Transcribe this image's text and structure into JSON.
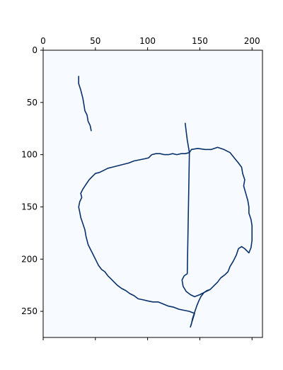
{
  "chart_data": {
    "type": "heatmap",
    "title": "",
    "xlabel": "",
    "ylabel": "",
    "xlim": [
      0,
      210
    ],
    "ylim": [
      275,
      0
    ],
    "x_axis_position": "top",
    "x_ticks": [
      0,
      50,
      100,
      150,
      200
    ],
    "y_ticks": [
      0,
      50,
      100,
      150,
      200,
      250
    ],
    "grid": false,
    "colormap": "Blues",
    "colors": {
      "background": "#f7fbff",
      "foreground": "#08306b",
      "frame": "#000000"
    },
    "series": [
      {
        "values_description": "edge pixels (value 1), stroke A",
        "points": [
          [
            34,
            25
          ],
          [
            34,
            32
          ],
          [
            36,
            38
          ],
          [
            38,
            46
          ],
          [
            39,
            52
          ],
          [
            40,
            58
          ],
          [
            42,
            62
          ],
          [
            43,
            68
          ],
          [
            45,
            72
          ],
          [
            46,
            77
          ]
        ]
      },
      {
        "values_description": "edge pixels (value 1), stroke B",
        "points": [
          [
            136,
            70
          ],
          [
            137,
            78
          ],
          [
            138,
            86
          ],
          [
            139,
            92
          ],
          [
            140,
            98
          ],
          [
            142,
            95
          ],
          [
            148,
            94
          ],
          [
            155,
            95
          ],
          [
            161,
            95
          ],
          [
            167,
            93
          ],
          [
            173,
            95
          ],
          [
            179,
            98
          ],
          [
            183,
            103
          ],
          [
            187,
            108
          ],
          [
            190,
            112
          ],
          [
            191,
            118
          ],
          [
            193,
            124
          ],
          [
            192,
            130
          ],
          [
            194,
            137
          ],
          [
            196,
            144
          ],
          [
            197,
            150
          ],
          [
            197,
            156
          ],
          [
            199,
            162
          ],
          [
            200,
            168
          ],
          [
            200,
            175
          ],
          [
            200,
            182
          ],
          [
            199,
            189
          ],
          [
            197,
            194
          ],
          [
            193,
            190
          ],
          [
            190,
            188
          ],
          [
            187,
            190
          ],
          [
            185,
            196
          ],
          [
            182,
            202
          ],
          [
            179,
            207
          ],
          [
            177,
            212
          ],
          [
            174,
            215
          ],
          [
            170,
            218
          ],
          [
            167,
            222
          ],
          [
            163,
            226
          ],
          [
            160,
            229
          ],
          [
            157,
            230
          ],
          [
            154,
            232
          ],
          [
            151,
            236
          ],
          [
            149,
            240
          ],
          [
            147,
            245
          ],
          [
            145,
            251
          ],
          [
            143,
            257
          ],
          [
            142,
            262
          ],
          [
            141,
            265
          ],
          [
            145,
            252
          ],
          [
            140,
            250
          ],
          [
            135,
            249
          ],
          [
            130,
            248
          ],
          [
            125,
            246
          ],
          [
            120,
            245
          ],
          [
            115,
            243
          ],
          [
            110,
            241
          ],
          [
            105,
            241
          ],
          [
            100,
            240
          ],
          [
            96,
            239
          ],
          [
            91,
            238
          ],
          [
            87,
            235
          ],
          [
            83,
            233
          ],
          [
            79,
            230
          ],
          [
            75,
            228
          ],
          [
            71,
            225
          ],
          [
            68,
            222
          ],
          [
            65,
            219
          ],
          [
            62,
            216
          ],
          [
            59,
            212
          ],
          [
            56,
            210
          ],
          [
            53,
            206
          ],
          [
            51,
            202
          ],
          [
            49,
            198
          ],
          [
            47,
            194
          ],
          [
            45,
            190
          ],
          [
            43,
            186
          ],
          [
            42,
            182
          ],
          [
            41,
            178
          ],
          [
            40,
            172
          ],
          [
            38,
            166
          ],
          [
            36,
            160
          ],
          [
            35,
            155
          ],
          [
            34,
            150
          ],
          [
            35,
            145
          ],
          [
            37,
            141
          ],
          [
            36,
            137
          ],
          [
            38,
            133
          ],
          [
            40,
            130
          ],
          [
            42,
            127
          ],
          [
            44,
            124
          ],
          [
            47,
            121
          ],
          [
            50,
            118
          ],
          [
            54,
            117
          ],
          [
            58,
            115
          ],
          [
            62,
            113
          ],
          [
            66,
            112
          ],
          [
            70,
            111
          ],
          [
            74,
            110
          ],
          [
            78,
            109
          ],
          [
            82,
            108
          ],
          [
            87,
            106
          ],
          [
            92,
            105
          ],
          [
            97,
            104
          ],
          [
            101,
            103
          ],
          [
            104,
            100
          ],
          [
            108,
            99
          ],
          [
            112,
            99
          ],
          [
            116,
            100
          ],
          [
            120,
            100
          ],
          [
            124,
            99
          ],
          [
            128,
            100
          ],
          [
            132,
            99
          ],
          [
            136,
            99
          ],
          [
            140,
            98
          ],
          [
            138,
            214
          ],
          [
            135,
            216
          ],
          [
            133,
            220
          ],
          [
            134,
            226
          ],
          [
            137,
            231
          ],
          [
            141,
            234
          ],
          [
            145,
            236
          ],
          [
            150,
            234
          ],
          [
            156,
            231
          ],
          [
            160,
            229
          ]
        ]
      }
    ]
  }
}
